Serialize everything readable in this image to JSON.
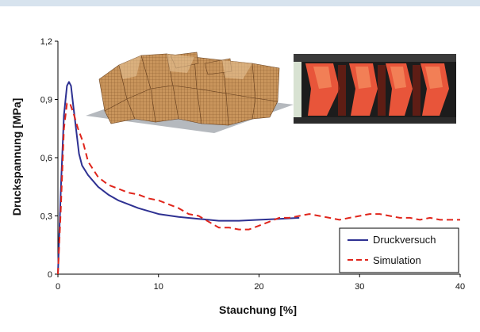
{
  "colors": {
    "topbar": "#d7e3ee",
    "druckversuch": "#2e3192",
    "simulation": "#e0251b",
    "axis": "#000000"
  },
  "chart_data": {
    "type": "line",
    "title": "",
    "xlabel": "Stauchung [%]",
    "ylabel": "Druckspannung [MPa]",
    "xlim": [
      0,
      40
    ],
    "ylim": [
      0,
      1.2
    ],
    "x_ticks": [
      "0",
      "10",
      "20",
      "30",
      "40"
    ],
    "y_ticks": [
      "0",
      "0,3",
      "0,6",
      "0,9",
      "1,2"
    ],
    "grid": false,
    "legend_position": "bottom-right",
    "series": [
      {
        "name": "Druckversuch",
        "style": "solid",
        "x": [
          0,
          0.3,
          0.6,
          0.9,
          1.1,
          1.3,
          1.5,
          1.8,
          2.1,
          2.4,
          3,
          4,
          5,
          6,
          8,
          10,
          12,
          14,
          16,
          18,
          20,
          22,
          24
        ],
        "y": [
          0,
          0.45,
          0.82,
          0.97,
          0.99,
          0.97,
          0.88,
          0.75,
          0.62,
          0.56,
          0.51,
          0.45,
          0.41,
          0.38,
          0.34,
          0.31,
          0.295,
          0.285,
          0.275,
          0.275,
          0.28,
          0.285,
          0.29
        ]
      },
      {
        "name": "Simulation",
        "style": "dashed",
        "x": [
          0,
          0.3,
          0.6,
          0.9,
          1.2,
          1.6,
          2,
          2.5,
          3,
          4,
          5,
          6,
          7,
          8,
          9,
          10,
          11,
          12,
          13,
          14,
          15,
          16,
          17,
          18,
          19,
          20,
          21,
          22,
          23,
          24,
          25,
          26,
          27,
          28,
          29,
          30,
          31,
          32,
          33,
          34,
          35,
          36,
          37,
          38,
          39,
          40
        ],
        "y": [
          0,
          0.35,
          0.75,
          0.88,
          0.88,
          0.82,
          0.75,
          0.68,
          0.58,
          0.5,
          0.46,
          0.44,
          0.42,
          0.41,
          0.39,
          0.38,
          0.36,
          0.34,
          0.31,
          0.3,
          0.27,
          0.24,
          0.24,
          0.23,
          0.23,
          0.25,
          0.27,
          0.29,
          0.29,
          0.3,
          0.31,
          0.3,
          0.29,
          0.28,
          0.29,
          0.3,
          0.31,
          0.31,
          0.3,
          0.29,
          0.29,
          0.28,
          0.29,
          0.28,
          0.28,
          0.28
        ]
      }
    ],
    "insets": [
      {
        "name": "simulation-model-render"
      },
      {
        "name": "test-specimen-photo"
      }
    ]
  }
}
